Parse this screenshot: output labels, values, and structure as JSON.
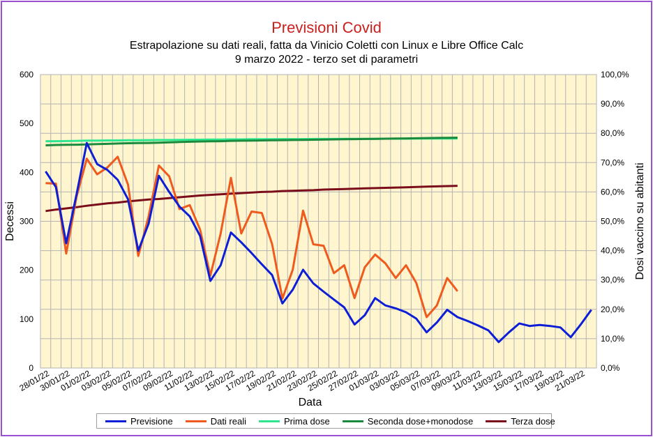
{
  "chart_data": {
    "type": "line",
    "title": "Previsioni Covid",
    "subtitle": [
      "Estrapolazione su dati reali, fatta da Vinicio Coletti con Linux e Libre Office Calc",
      "9 marzo 2022 - terzo set di parametri"
    ],
    "xlabel": "Data",
    "ylabel": "Decessi",
    "y2label": "Dosi vaccino su abitanti",
    "ylim": [
      0,
      600
    ],
    "y2lim": [
      0,
      100
    ],
    "yticks": [
      "0",
      "100",
      "200",
      "300",
      "400",
      "500",
      "600"
    ],
    "y2ticks": [
      "0,0%",
      "10,0%",
      "20,0%",
      "30,0%",
      "40,0%",
      "50,0%",
      "60,0%",
      "70,0%",
      "80,0%",
      "90,0%",
      "100,0%"
    ],
    "xtick_labels": [
      "28/01/22",
      "30/01/22",
      "01/02/22",
      "03/02/22",
      "05/02/22",
      "07/02/22",
      "09/02/22",
      "11/02/22",
      "13/02/22",
      "15/02/22",
      "17/02/22",
      "19/02/22",
      "21/02/22",
      "23/02/22",
      "25/02/22",
      "27/02/22",
      "01/03/22",
      "03/03/22",
      "05/03/22",
      "07/03/22",
      "09/03/22",
      "11/03/22",
      "13/03/22",
      "15/03/22",
      "17/03/22",
      "19/03/22",
      "21/03/22"
    ],
    "x_start": "28/01/22",
    "x_days": 54,
    "grid": true,
    "legend_position": "bottom",
    "series": [
      {
        "name": "Previsione",
        "axis": "left",
        "color": "#0d1fd6",
        "values": [
          402,
          370,
          255,
          355,
          460,
          417,
          405,
          385,
          345,
          240,
          295,
          393,
          360,
          330,
          310,
          270,
          178,
          210,
          277,
          257,
          235,
          212,
          190,
          132,
          160,
          201,
          173,
          156,
          140,
          124,
          89,
          108,
          143,
          128,
          122,
          114,
          101,
          73,
          93,
          119,
          104,
          96,
          87,
          77,
          53,
          73,
          91,
          86,
          88,
          86,
          83,
          63,
          90,
          119
        ]
      },
      {
        "name": "Dati reali",
        "axis": "left",
        "color": "#ef5a1e",
        "values": [
          378,
          377,
          234,
          350,
          428,
          396,
          410,
          432,
          375,
          229,
          310,
          414,
          392,
          325,
          333,
          283,
          189,
          275,
          389,
          275,
          320,
          317,
          253,
          142,
          201,
          322,
          253,
          250,
          194,
          210,
          143,
          206,
          232,
          214,
          184,
          210,
          174,
          104,
          128,
          184,
          157
        ]
      },
      {
        "name": "Prima dose",
        "axis": "right",
        "color": "#2ee68f",
        "values": [
          77.3,
          77.3,
          77.35,
          77.4,
          77.5,
          77.5,
          77.55,
          77.55,
          77.6,
          77.6,
          77.65,
          77.7,
          77.7,
          77.75,
          77.8,
          77.8,
          77.85,
          77.85,
          77.9,
          77.9,
          77.95,
          77.95,
          77.95,
          78.0,
          78.0,
          78.0,
          78.05,
          78.05,
          78.05,
          78.1,
          78.1,
          78.1,
          78.1,
          78.15,
          78.15,
          78.15,
          78.2,
          78.2,
          78.2,
          78.2,
          78.2
        ]
      },
      {
        "name": "Seconda dose+monodose",
        "axis": "right",
        "color": "#1a8a3c",
        "values": [
          75.9,
          76.0,
          76.05,
          76.1,
          76.2,
          76.3,
          76.4,
          76.5,
          76.6,
          76.65,
          76.7,
          76.8,
          76.9,
          77.0,
          77.1,
          77.2,
          77.25,
          77.3,
          77.4,
          77.45,
          77.5,
          77.55,
          77.6,
          77.65,
          77.7,
          77.75,
          77.8,
          77.85,
          77.9,
          77.95,
          78.0,
          78.05,
          78.1,
          78.15,
          78.2,
          78.25,
          78.3,
          78.35,
          78.4,
          78.45,
          78.5
        ]
      },
      {
        "name": "Terza dose",
        "axis": "right",
        "color": "#7b0c1a",
        "values": [
          53.5,
          54.0,
          54.4,
          54.8,
          55.3,
          55.7,
          56.1,
          56.4,
          56.8,
          57.1,
          57.4,
          57.6,
          57.9,
          58.2,
          58.5,
          58.8,
          59.0,
          59.2,
          59.4,
          59.6,
          59.8,
          60.0,
          60.1,
          60.3,
          60.4,
          60.5,
          60.6,
          60.8,
          60.9,
          61.0,
          61.1,
          61.2,
          61.3,
          61.4,
          61.5,
          61.6,
          61.7,
          61.8,
          61.9,
          62.0,
          62.1
        ]
      }
    ]
  }
}
